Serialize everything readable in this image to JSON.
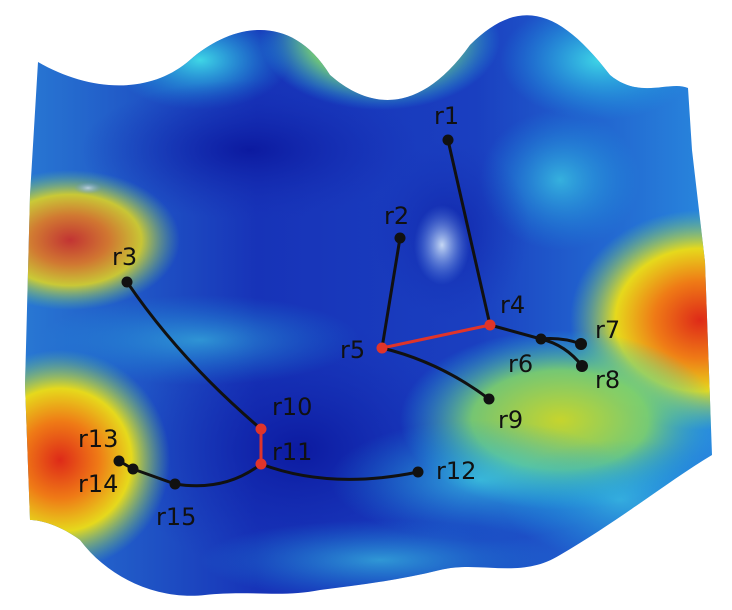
{
  "colors": {
    "surface_low": "#1a2fb0",
    "surface_mid": "#12a6e6",
    "surface_high": "#e7e31a",
    "surface_peak": "#d6331a",
    "path_black": "#111111",
    "path_red": "#e0342a"
  },
  "nodes": [
    {
      "id": "r1",
      "label": "r1",
      "color": "black"
    },
    {
      "id": "r2",
      "label": "r2",
      "color": "black"
    },
    {
      "id": "r3",
      "label": "r3",
      "color": "black"
    },
    {
      "id": "r4",
      "label": "r4",
      "color": "red"
    },
    {
      "id": "r5",
      "label": "r5",
      "color": "red"
    },
    {
      "id": "r6",
      "label": "r6",
      "color": "black"
    },
    {
      "id": "r7",
      "label": "r7",
      "color": "black"
    },
    {
      "id": "r8",
      "label": "r8",
      "color": "black"
    },
    {
      "id": "r9",
      "label": "r9",
      "color": "black"
    },
    {
      "id": "r10",
      "label": "r10",
      "color": "red"
    },
    {
      "id": "r11",
      "label": "r11",
      "color": "red"
    },
    {
      "id": "r12",
      "label": "r12",
      "color": "black"
    },
    {
      "id": "r13",
      "label": "r13",
      "color": "black"
    },
    {
      "id": "r14",
      "label": "r14",
      "color": "black"
    },
    {
      "id": "r15",
      "label": "r15",
      "color": "black"
    }
  ],
  "edges": [
    {
      "from": "r1",
      "to": "r4",
      "color": "black"
    },
    {
      "from": "r2",
      "to": "r5",
      "color": "black"
    },
    {
      "from": "r4",
      "to": "r5",
      "color": "red"
    },
    {
      "from": "r4",
      "to": "r6",
      "color": "black"
    },
    {
      "from": "r6",
      "to": "r7",
      "color": "black"
    },
    {
      "from": "r6",
      "to": "r8",
      "color": "black"
    },
    {
      "from": "r5",
      "to": "r9",
      "color": "black"
    },
    {
      "from": "r3",
      "to": "r10",
      "color": "black"
    },
    {
      "from": "r10",
      "to": "r11",
      "color": "red"
    },
    {
      "from": "r11",
      "to": "r12",
      "color": "black"
    },
    {
      "from": "r11",
      "to": "r15",
      "color": "black"
    },
    {
      "from": "r15",
      "to": "r14",
      "color": "black"
    },
    {
      "from": "r14",
      "to": "r13",
      "color": "black"
    }
  ]
}
